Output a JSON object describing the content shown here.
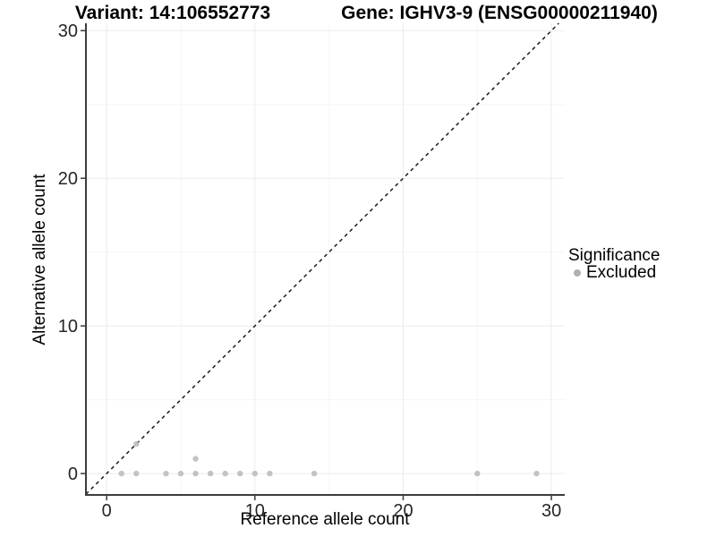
{
  "titles": {
    "variant": "Variant: 14:106552773",
    "gene": "Gene: IGHV3-9 (ENSG00000211940)"
  },
  "chart_data": {
    "type": "scatter",
    "title_left": "Variant: 14:106552773",
    "title_right": "Gene: IGHV3-9 (ENSG00000211940)",
    "xlabel": "Reference allele count",
    "ylabel": "Alternative allele count",
    "xlim": [
      -1.4,
      30.9
    ],
    "ylim": [
      -1.45,
      30.5
    ],
    "x_major_ticks": [
      0,
      10,
      20,
      30
    ],
    "y_major_ticks": [
      0,
      10,
      20,
      30
    ],
    "x_minor_gridlines": [
      5,
      15,
      25
    ],
    "y_minor_gridlines": [
      5,
      15,
      25
    ],
    "grid": "on",
    "identity_line": {
      "equation": "y = x",
      "style": "dashed",
      "color": "#1a1a1a"
    },
    "series": [
      {
        "name": "Excluded",
        "color": "#bcbcbc",
        "points": [
          {
            "x": 1,
            "y": 0
          },
          {
            "x": 2,
            "y": 0
          },
          {
            "x": 2,
            "y": 2
          },
          {
            "x": 4,
            "y": 0
          },
          {
            "x": 5,
            "y": 0
          },
          {
            "x": 6,
            "y": 0
          },
          {
            "x": 6,
            "y": 1
          },
          {
            "x": 7,
            "y": 0
          },
          {
            "x": 8,
            "y": 0
          },
          {
            "x": 9,
            "y": 0
          },
          {
            "x": 10,
            "y": 0
          },
          {
            "x": 11,
            "y": 0
          },
          {
            "x": 14,
            "y": 0
          },
          {
            "x": 25,
            "y": 0
          },
          {
            "x": 29,
            "y": 0
          }
        ]
      }
    ],
    "legend": {
      "title": "Significance",
      "position": "right",
      "entries": [
        {
          "label": "Excluded",
          "color": "#b0b0b0"
        }
      ]
    },
    "colors": {
      "grid_major": "#ececec",
      "grid_minor": "#f6f6f6",
      "axis_line": "#3c3c3c",
      "tick_text": "#262626"
    }
  }
}
